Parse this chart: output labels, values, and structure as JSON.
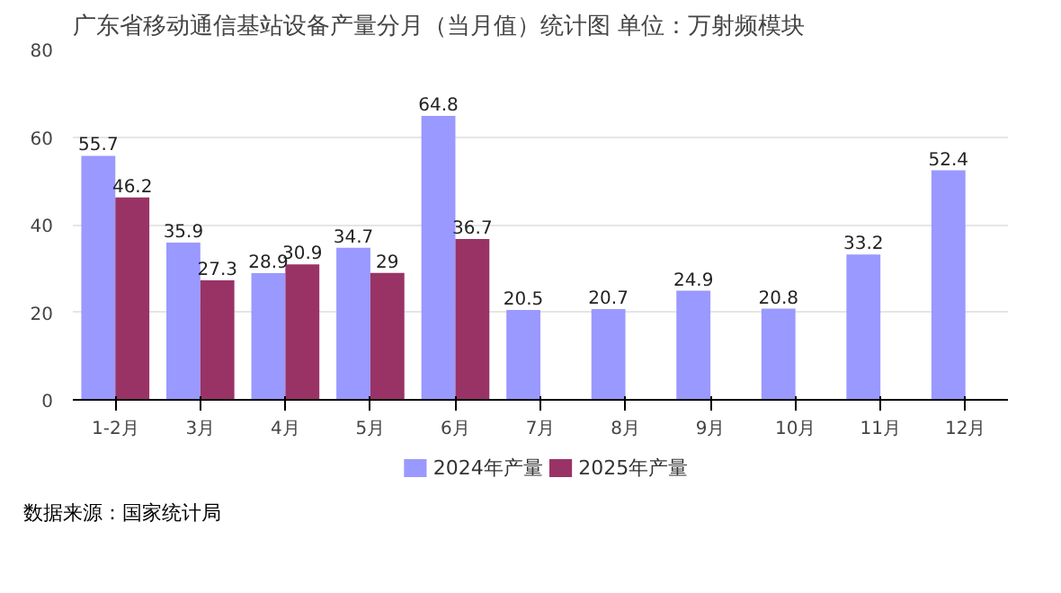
{
  "chart_data": {
    "type": "bar",
    "title": "广东省移动通信基站设备产量分月（当月值）统计图 单位：万射频模块",
    "categories": [
      "1-2月",
      "3月",
      "4月",
      "5月",
      "6月",
      "7月",
      "8月",
      "9月",
      "10月",
      "11月",
      "12月"
    ],
    "series": [
      {
        "name": "2024年产量",
        "color": "#9999ff",
        "values": [
          55.7,
          35.9,
          28.9,
          34.7,
          64.8,
          20.5,
          20.7,
          24.9,
          20.8,
          33.2,
          52.4
        ]
      },
      {
        "name": "2025年产量",
        "color": "#993366",
        "values": [
          46.2,
          27.3,
          30.9,
          29,
          36.7,
          null,
          null,
          null,
          null,
          null,
          null
        ]
      }
    ],
    "ylim": [
      0,
      80
    ],
    "yticks": [
      0,
      20,
      40,
      60,
      80
    ],
    "grid": "y",
    "legend": "bottom",
    "data_labels": true,
    "annotations": [
      "数据来源：国家统计局"
    ]
  }
}
